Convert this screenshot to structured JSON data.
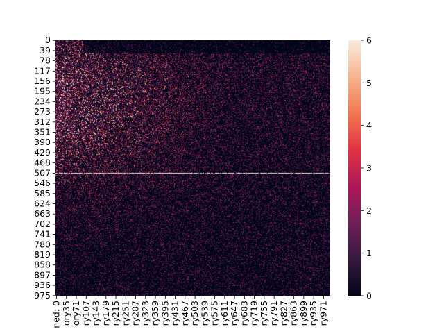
{
  "chart_data": {
    "type": "heatmap",
    "title": "",
    "xlabel": "",
    "ylabel": "",
    "n_rows": 976,
    "n_cols": 1000,
    "y_tick_labels": [
      "0",
      "39",
      "78",
      "117",
      "156",
      "195",
      "234",
      "273",
      "312",
      "351",
      "390",
      "429",
      "468",
      "507",
      "546",
      "585",
      "624",
      "663",
      "702",
      "741",
      "780",
      "819",
      "858",
      "897",
      "936",
      "975"
    ],
    "x_tick_labels": [
      "ned: 0",
      "ory35",
      "ory71",
      "ry107",
      "ry143",
      "ry179",
      "ry215",
      "ry251",
      "ry287",
      "ry323",
      "ry359",
      "ry395",
      "ry431",
      "ry467",
      "ry503",
      "ry539",
      "ry575",
      "ry611",
      "ry647",
      "ry683",
      "ry719",
      "ry755",
      "ry791",
      "ry827",
      "ry863",
      "ry899",
      "ry935",
      "ry971"
    ],
    "value_range": [
      0,
      6
    ],
    "colorbar": {
      "ticks": [
        "0",
        "1",
        "2",
        "3",
        "4",
        "5",
        "6"
      ],
      "colormap": "rocket",
      "colors": [
        "#03051a",
        "#36193e",
        "#701f57",
        "#ae1759",
        "#e13342",
        "#f37651",
        "#f6b48f",
        "#faebdd"
      ]
    },
    "highlight_row_value": 6,
    "highlight_row_label": "507",
    "grid": false,
    "legend": "colorbar-right"
  }
}
